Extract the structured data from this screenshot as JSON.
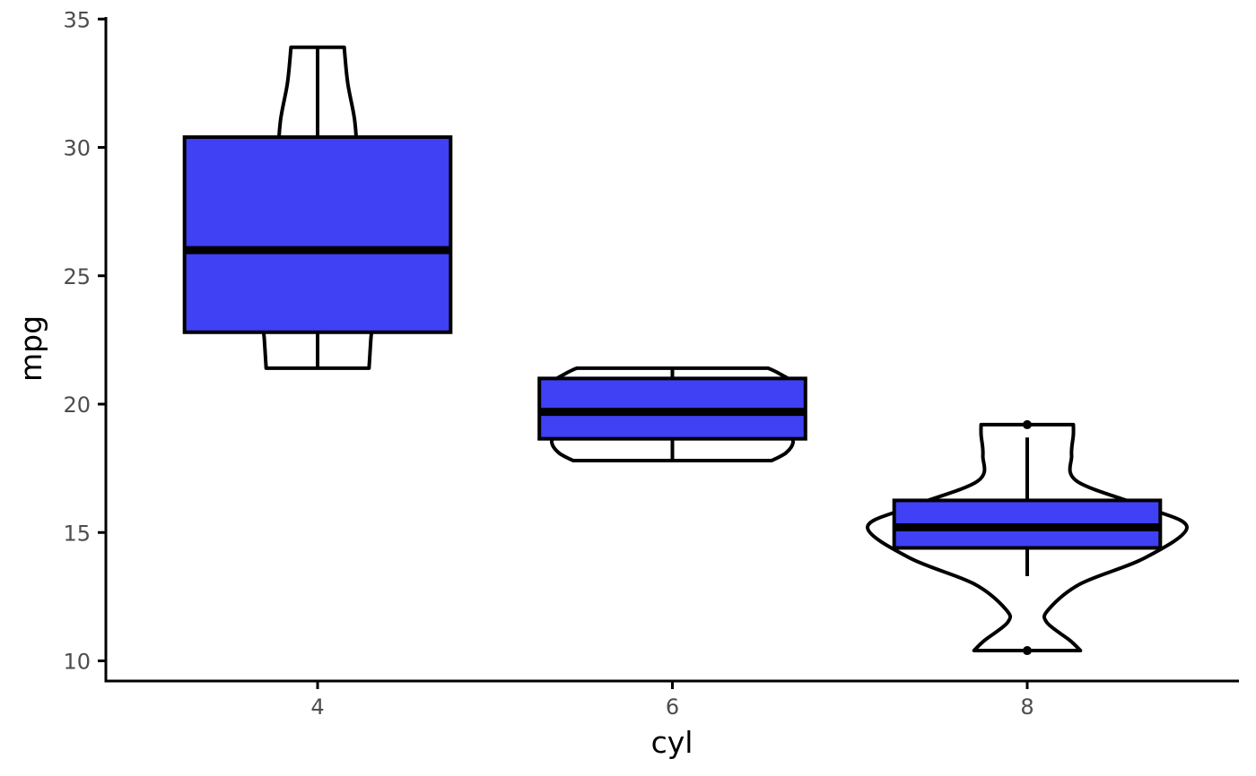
{
  "chart_data": {
    "type": "boxplot+violin",
    "xlabel": "cyl",
    "ylabel": "mpg",
    "categories": [
      "4",
      "6",
      "8"
    ],
    "ylim": [
      9.3,
      35
    ],
    "y_ticks": [
      10,
      15,
      20,
      25,
      30,
      35
    ],
    "grid": false,
    "legend": "none",
    "colors": {
      "box_fill": "#4040f4",
      "stroke": "#000000",
      "tick_label": "#4d4d4d"
    },
    "boxes": [
      {
        "category": "4",
        "whisker_low": 21.4,
        "q1": 22.8,
        "median": 26.0,
        "q3": 30.4,
        "whisker_high": 33.9,
        "outliers": []
      },
      {
        "category": "6",
        "whisker_low": 17.8,
        "q1": 18.65,
        "median": 19.7,
        "q3": 21.0,
        "whisker_high": 21.4,
        "outliers": []
      },
      {
        "category": "8",
        "whisker_low": 13.3,
        "q1": 14.4,
        "median": 15.2,
        "q3": 16.25,
        "whisker_high": 18.7,
        "outliers": [
          10.4,
          19.2
        ]
      }
    ],
    "violins": [
      {
        "category": "4",
        "profile": [
          [
            21.4,
            0.145
          ],
          [
            22.5,
            0.15
          ],
          [
            23.5,
            0.155
          ],
          [
            24.5,
            0.14
          ],
          [
            26.0,
            0.1
          ],
          [
            27.5,
            0.1
          ],
          [
            29.5,
            0.11
          ],
          [
            31.0,
            0.105
          ],
          [
            32.5,
            0.085
          ],
          [
            33.9,
            0.075
          ]
        ]
      },
      {
        "category": "6",
        "profile": [
          [
            17.8,
            0.28
          ],
          [
            18.1,
            0.32
          ],
          [
            18.5,
            0.34
          ],
          [
            19.0,
            0.33
          ],
          [
            19.7,
            0.325
          ],
          [
            20.3,
            0.355
          ],
          [
            20.8,
            0.345
          ],
          [
            21.2,
            0.3
          ],
          [
            21.4,
            0.27
          ]
        ]
      },
      {
        "category": "8",
        "profile": [
          [
            10.4,
            0.15
          ],
          [
            10.8,
            0.12
          ],
          [
            11.5,
            0.055
          ],
          [
            12.0,
            0.06
          ],
          [
            13.0,
            0.15
          ],
          [
            14.0,
            0.33
          ],
          [
            15.2,
            0.45
          ],
          [
            16.0,
            0.33
          ],
          [
            17.0,
            0.14
          ],
          [
            18.0,
            0.125
          ],
          [
            18.8,
            0.13
          ],
          [
            19.2,
            0.13
          ]
        ]
      }
    ]
  }
}
